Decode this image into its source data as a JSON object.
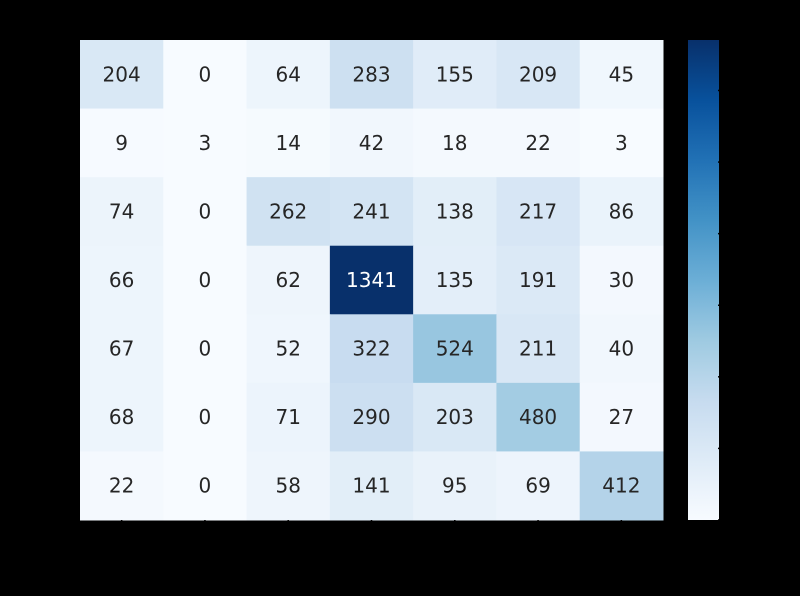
{
  "chart_data": {
    "type": "heatmap",
    "title": "",
    "xlabel": "",
    "ylabel": "",
    "rows": 7,
    "cols": 7,
    "values": [
      [
        204,
        0,
        64,
        283,
        155,
        209,
        45
      ],
      [
        9,
        3,
        14,
        42,
        18,
        22,
        3
      ],
      [
        74,
        0,
        262,
        241,
        138,
        217,
        86
      ],
      [
        66,
        0,
        62,
        1341,
        135,
        191,
        30
      ],
      [
        67,
        0,
        52,
        322,
        524,
        211,
        40
      ],
      [
        68,
        0,
        71,
        290,
        203,
        480,
        27
      ],
      [
        22,
        0,
        58,
        141,
        95,
        69,
        412
      ]
    ],
    "color_scale": {
      "name": "Blues",
      "min": 0,
      "max": 1341,
      "low_color": "#f7fbff",
      "high_color": "#08306b"
    },
    "colorbar": true,
    "text_color_light": "#ffffff",
    "text_color_dark": "#262626",
    "background_color": "#000000",
    "tick_color": "#000000"
  }
}
